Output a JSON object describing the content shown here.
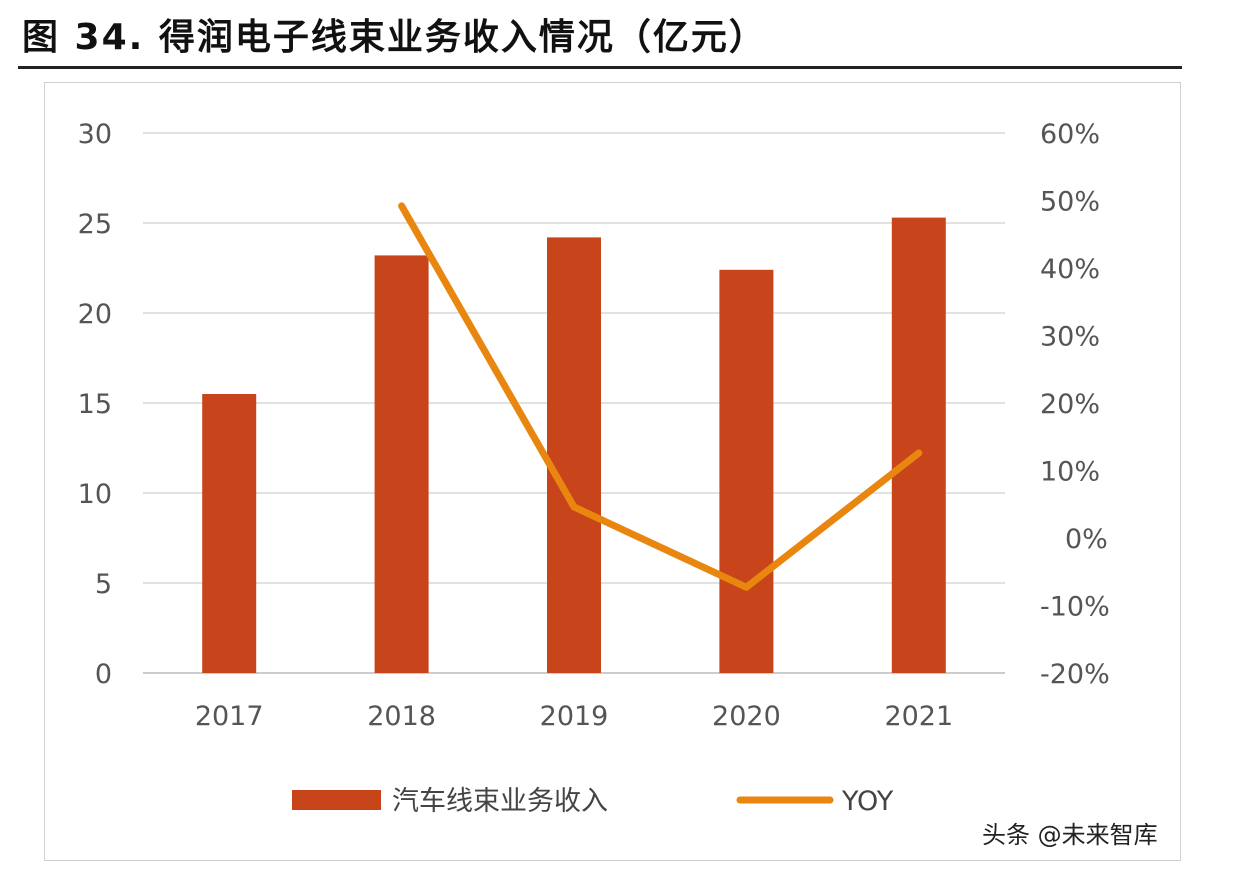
{
  "title": "图 34. 得润电子线束业务收入情况（亿元）",
  "watermark": "头条 @未来智库",
  "chart_data": {
    "type": "bar+line",
    "title": "图 34. 得润电子线束业务收入情况（亿元）",
    "categories": [
      "2017",
      "2018",
      "2019",
      "2020",
      "2021"
    ],
    "series": [
      {
        "name": "汽车线束业务收入",
        "type": "bar",
        "axis": "left",
        "color": "#C8451B",
        "values": [
          15.5,
          23.2,
          24.2,
          22.4,
          25.3
        ]
      },
      {
        "name": "YOY",
        "type": "line",
        "axis": "right",
        "color": "#E8860F",
        "values": [
          null,
          49.2,
          4.6,
          -7.3,
          12.6
        ]
      }
    ],
    "left_axis": {
      "ylim": [
        0,
        30
      ],
      "ticks": [
        "0",
        "5",
        "10",
        "15",
        "20",
        "25",
        "30"
      ]
    },
    "right_axis": {
      "ylim": [
        -20,
        60
      ],
      "ticks": [
        "-20%",
        "-10%",
        "0%",
        "10%",
        "20%",
        "30%",
        "40%",
        "50%",
        "60%"
      ]
    },
    "grid": true,
    "legend_position": "bottom"
  }
}
